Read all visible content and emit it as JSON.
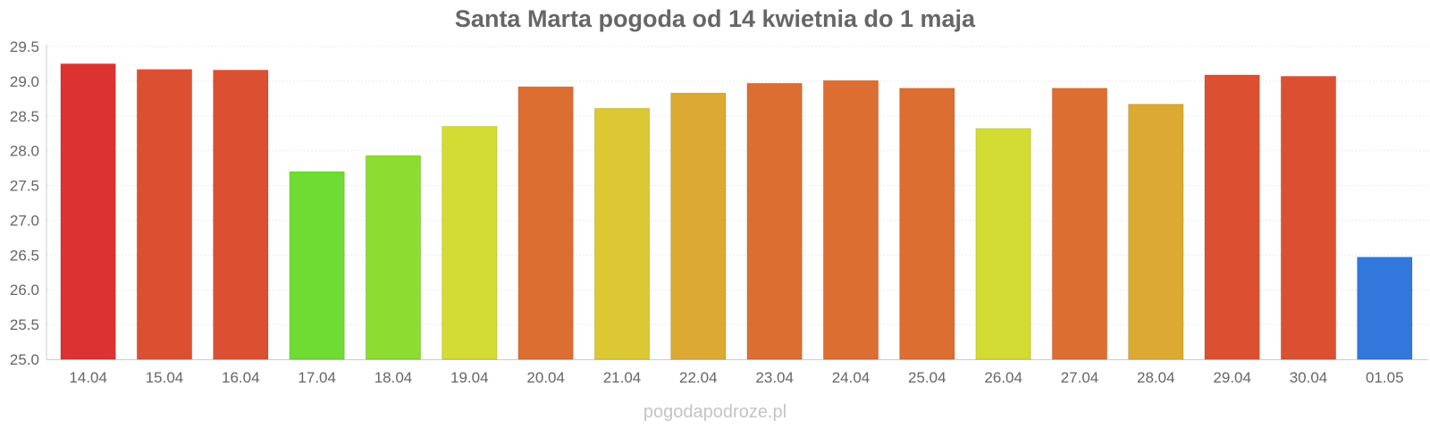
{
  "chart_data": {
    "type": "bar",
    "title": "Santa Marta pogoda od 14 kwietnia do 1 maja",
    "categories": [
      "14.04",
      "15.04",
      "16.04",
      "17.04",
      "18.04",
      "19.04",
      "20.04",
      "21.04",
      "22.04",
      "23.04",
      "24.04",
      "25.04",
      "26.04",
      "27.04",
      "28.04",
      "29.04",
      "30.04",
      "01.05"
    ],
    "values": [
      29.25,
      29.17,
      29.16,
      27.7,
      27.93,
      28.35,
      28.92,
      28.61,
      28.83,
      28.97,
      29.01,
      28.9,
      28.32,
      28.9,
      28.67,
      29.09,
      29.07,
      26.47
    ],
    "colors": [
      "#dc3232",
      "#dc5032",
      "#dc5032",
      "#6edc32",
      "#8cdc32",
      "#d2dc32",
      "#dc6e32",
      "#dcc832",
      "#dcaa32",
      "#dc6e32",
      "#dc6e32",
      "#dc6e32",
      "#d2dc32",
      "#dc6e32",
      "#dcaa32",
      "#dc5032",
      "#dc5032",
      "#3278dc"
    ],
    "ylim": [
      25.0,
      29.5
    ],
    "yticks": [
      "25.0",
      "25.5",
      "26.0",
      "26.5",
      "27.0",
      "27.5",
      "28.0",
      "28.5",
      "29.0",
      "29.5"
    ],
    "xlabel": "",
    "ylabel": "",
    "grid": true,
    "legend": "none"
  },
  "watermark": "pogodapodroze.pl"
}
